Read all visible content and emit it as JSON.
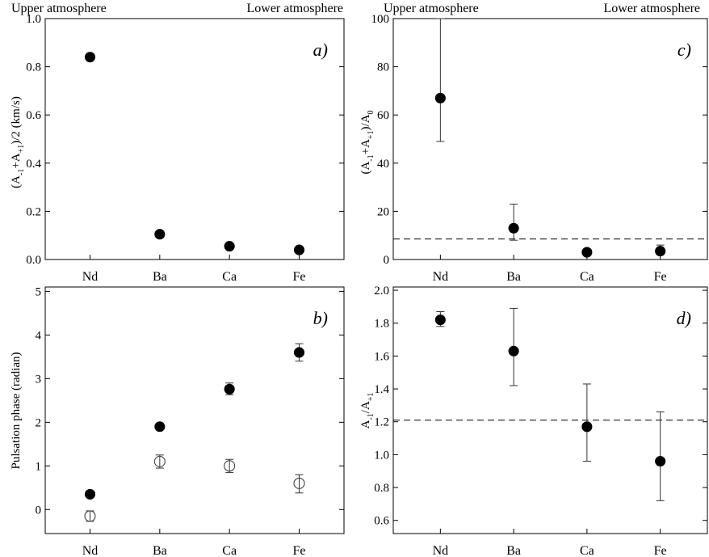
{
  "header": {
    "left": {
      "upper": "Upper atmosphere",
      "lower": "Lower atmosphere"
    },
    "right": {
      "upper": "Upper atmosphere",
      "lower": "Lower atmosphere"
    }
  },
  "chart_data": [
    {
      "id": "a",
      "type": "scatter",
      "panel_label": "a)",
      "categories": [
        "Nd",
        "Ba",
        "Ca",
        "Fe"
      ],
      "ylabel": "(A-1+A+1)/2 (km/s)",
      "ylim": [
        0,
        1.0
      ],
      "yticks": [
        0.0,
        0.2,
        0.4,
        0.6,
        0.8,
        1.0
      ],
      "ytick_labels": [
        "0.0",
        "0.2",
        "0.4",
        "0.6",
        "0.8",
        "1.0"
      ],
      "series": [
        {
          "marker": "filled",
          "values": [
            0.84,
            0.105,
            0.055,
            0.04
          ]
        }
      ]
    },
    {
      "id": "c",
      "type": "scatter",
      "panel_label": "c)",
      "categories": [
        "Nd",
        "Ba",
        "Ca",
        "Fe"
      ],
      "ylabel": "(A-1+A+1)/A0",
      "ylim": [
        0,
        100
      ],
      "yticks": [
        0,
        20,
        40,
        60,
        80,
        100
      ],
      "ytick_labels": [
        "0",
        "20",
        "40",
        "60",
        "80",
        "100"
      ],
      "reference_line": 8.5,
      "series": [
        {
          "marker": "filled",
          "values": [
            67,
            13,
            3,
            3.5
          ],
          "err_low": [
            49,
            8,
            3,
            2
          ],
          "err_high": [
            100,
            23,
            3,
            6
          ]
        }
      ]
    },
    {
      "id": "b",
      "type": "scatter",
      "panel_label": "b)",
      "categories": [
        "Nd",
        "Ba",
        "Ca",
        "Fe"
      ],
      "ylabel": "Pulsation phase (radian)",
      "ylim": [
        -0.55,
        5.1
      ],
      "yticks": [
        0,
        1,
        2,
        3,
        4,
        5
      ],
      "ytick_labels": [
        "0",
        "1",
        "2",
        "3",
        "4",
        "5"
      ],
      "series": [
        {
          "marker": "filled",
          "values": [
            0.35,
            1.9,
            2.76,
            3.6
          ],
          "err_low": [
            0.35,
            1.9,
            2.63,
            3.4
          ],
          "err_high": [
            0.35,
            1.9,
            2.9,
            3.8
          ]
        },
        {
          "marker": "open",
          "values": [
            -0.15,
            1.1,
            1.0,
            0.6
          ],
          "err_low": [
            -0.27,
            0.95,
            0.85,
            0.38
          ],
          "err_high": [
            -0.03,
            1.25,
            1.15,
            0.8
          ]
        }
      ]
    },
    {
      "id": "d",
      "type": "scatter",
      "panel_label": "d)",
      "categories": [
        "Nd",
        "Ba",
        "Ca",
        "Fe"
      ],
      "ylabel": "A-1/A+1",
      "ylim": [
        0.52,
        2.02
      ],
      "yticks": [
        0.6,
        0.8,
        1.0,
        1.2,
        1.4,
        1.6,
        1.8,
        2.0
      ],
      "ytick_labels": [
        "0.6",
        "0.8",
        "1.0",
        "1.2",
        "1.4",
        "1.6",
        "1.8",
        "2.0"
      ],
      "reference_line": 1.21,
      "series": [
        {
          "marker": "filled",
          "values": [
            1.82,
            1.63,
            1.17,
            0.96
          ],
          "err_low": [
            1.78,
            1.42,
            0.96,
            0.72
          ],
          "err_high": [
            1.87,
            1.89,
            1.43,
            1.26
          ]
        }
      ]
    }
  ]
}
